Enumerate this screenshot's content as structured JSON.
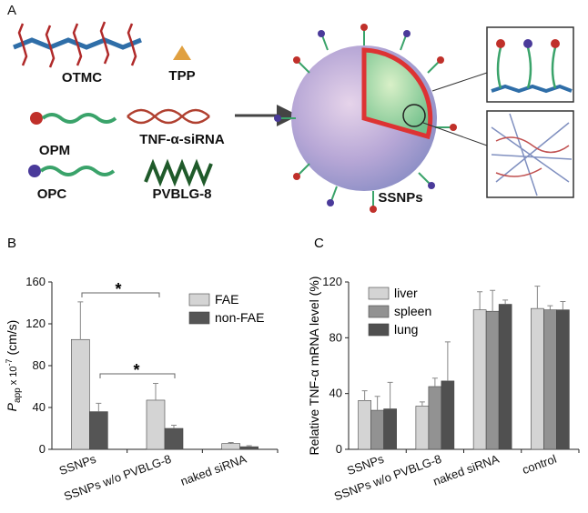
{
  "diagram": {
    "panel": "A",
    "labels": [
      "OTMC",
      "TPP",
      "OPM",
      "TNF-α-siRNA",
      "OPC",
      "PVBLG-8",
      "SSNPs"
    ]
  },
  "chart_data": [
    {
      "type": "bar",
      "panel": "B",
      "ylabel_parts": [
        "P",
        "app",
        " x 10",
        "-7",
        " (cm/s)"
      ],
      "categories": [
        "SSNPs",
        "SSNPs w/o PVBLG-8",
        "naked siRNA"
      ],
      "series": [
        {
          "name": "FAE",
          "color": "#d4d4d4",
          "values": [
            105,
            47,
            5.5
          ],
          "errors": [
            36,
            16,
            1
          ]
        },
        {
          "name": "non-FAE",
          "color": "#555555",
          "values": [
            36,
            20,
            2.5
          ],
          "errors": [
            8,
            3,
            1
          ]
        }
      ],
      "ylim": [
        0,
        160
      ],
      "yticks": [
        0,
        40,
        80,
        120,
        160
      ],
      "legend": "upper right",
      "annotations": [
        "*",
        "*"
      ]
    },
    {
      "type": "bar",
      "panel": "C",
      "ylabel": "Relative TNF-α mRNA level (%)",
      "categories": [
        "SSNPs",
        "SSNPs w/o PVBLG-8",
        "naked siRNA",
        "control"
      ],
      "series": [
        {
          "name": "liver",
          "color": "#d4d4d4",
          "values": [
            35,
            31,
            100,
            101
          ],
          "errors": [
            7,
            3,
            13,
            16
          ]
        },
        {
          "name": "spleen",
          "color": "#929292",
          "values": [
            28,
            45,
            99,
            100
          ],
          "errors": [
            10,
            6,
            15,
            3
          ]
        },
        {
          "name": "lung",
          "color": "#505050",
          "values": [
            29,
            49,
            104,
            100
          ],
          "errors": [
            19,
            28,
            3,
            6
          ]
        }
      ],
      "ylim": [
        0,
        120
      ],
      "yticks": [
        0,
        40,
        80,
        120
      ],
      "legend": "upper left"
    }
  ]
}
